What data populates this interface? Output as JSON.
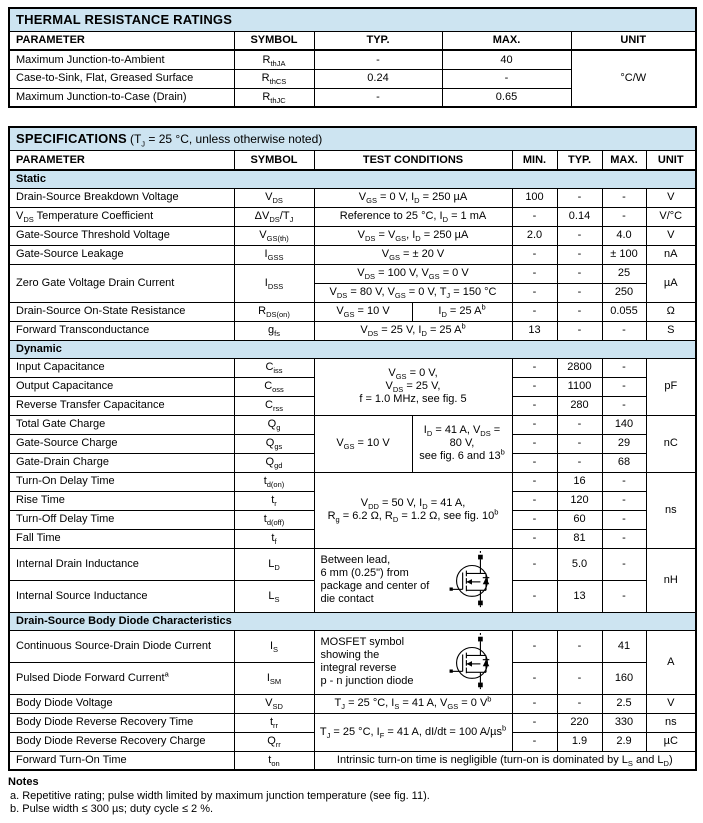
{
  "colors": {
    "band": "#cde4f1",
    "border": "#000000",
    "text": "#000000"
  },
  "thermal": {
    "title": "THERMAL RESISTANCE RATINGS",
    "headers": {
      "parameter": "PARAMETER",
      "symbol": "SYMBOL",
      "typ": "TYP.",
      "max": "MAX.",
      "unit": "UNIT"
    },
    "rows": [
      {
        "parameter": "Maximum Junction-to-Ambient",
        "symbol": "R~thJA~",
        "typ": "-",
        "max": "40"
      },
      {
        "parameter": "Case-to-Sink, Flat, Greased Surface",
        "symbol": "R~thCS~",
        "typ": "0.24",
        "max": "-"
      },
      {
        "parameter": "Maximum Junction-to-Case (Drain)",
        "symbol": "R~thJC~",
        "typ": "-",
        "max": "0.65"
      }
    ],
    "unit": "°C/W"
  },
  "spec": {
    "title": "SPECIFICATIONS",
    "subtitle": "(T~J~ = 25 °C, unless otherwise noted)",
    "headers": {
      "parameter": "PARAMETER",
      "symbol": "SYMBOL",
      "conditions": "TEST CONDITIONS",
      "min": "MIN.",
      "typ": "TYP.",
      "max": "MAX.",
      "unit": "UNIT"
    },
    "sections": {
      "static": "Static",
      "dynamic": "Dynamic",
      "diode": "Drain-Source Body Diode Characteristics"
    },
    "static_rows": [
      {
        "param": "Drain-Source Breakdown Voltage",
        "symbol": "V~DS~",
        "cond": "V~GS~ = 0 V, I~D~ = 250 µA",
        "min": "100",
        "typ": "-",
        "max": "-",
        "unit": "V"
      },
      {
        "param": "V~DS~ Temperature Coefficient",
        "symbol": "ΔV~DS~/T~J~",
        "cond": "Reference to 25 °C, I~D~ = 1 mA",
        "min": "-",
        "typ": "0.14",
        "max": "-",
        "unit": "V/°C"
      },
      {
        "param": "Gate-Source Threshold Voltage",
        "symbol": "V~GS(th)~",
        "cond": "V~DS~ = V~GS~, I~D~ = 250 µA",
        "min": "2.0",
        "typ": "-",
        "max": "4.0",
        "unit": "V"
      },
      {
        "param": "Gate-Source Leakage",
        "symbol": "I~GSS~",
        "cond": "V~GS~ = ± 20 V",
        "min": "-",
        "typ": "-",
        "max": "± 100",
        "unit": "nA"
      }
    ],
    "idss": {
      "param": "Zero Gate Voltage Drain Current",
      "symbol": "I~DSS~",
      "cond1": "V~DS~ = 100 V, V~GS~ = 0 V",
      "min1": "-",
      "typ1": "-",
      "max1": "25",
      "cond2": "V~DS~ = 80 V, V~GS~ = 0 V, T~J~ = 150 °C",
      "min2": "-",
      "typ2": "-",
      "max2": "250",
      "unit": "µA"
    },
    "rdson": {
      "param": "Drain-Source On-State Resistance",
      "symbol": "R~DS(on)~",
      "cond_left": "V~GS~ = 10 V",
      "cond_right": "I~D~ = 25 A^b^",
      "min": "-",
      "typ": "-",
      "max": "0.055",
      "unit": "Ω"
    },
    "gfs": {
      "param": "Forward Transconductance",
      "symbol": "g~fs~",
      "cond": "V~DS~ = 25 V, I~D~ = 25 A^b^",
      "min": "13",
      "typ": "-",
      "max": "-",
      "unit": "S"
    },
    "cap_cond": "V~GS~ = 0 V,\nV~DS~ = 25 V,\nf = 1.0 MHz, see fig. 5",
    "cap_unit": "pF",
    "cap_rows": [
      {
        "param": "Input Capacitance",
        "symbol": "C~iss~",
        "min": "-",
        "typ": "2800",
        "max": "-"
      },
      {
        "param": "Output Capacitance",
        "symbol": "C~oss~",
        "min": "-",
        "typ": "1100",
        "max": "-"
      },
      {
        "param": "Reverse Transfer Capacitance",
        "symbol": "C~rss~",
        "min": "-",
        "typ": "280",
        "max": "-"
      }
    ],
    "charge_cond_left": "V~GS~ = 10 V",
    "charge_cond_right": "I~D~ = 41 A, V~DS~ = 80 V,\nsee fig. 6 and 13^b^",
    "charge_unit": "nC",
    "charge_rows": [
      {
        "param": "Total Gate Charge",
        "symbol": "Q~g~",
        "min": "-",
        "typ": "-",
        "max": "140"
      },
      {
        "param": "Gate-Source Charge",
        "symbol": "Q~gs~",
        "min": "-",
        "typ": "-",
        "max": "29"
      },
      {
        "param": "Gate-Drain Charge",
        "symbol": "Q~gd~",
        "min": "-",
        "typ": "-",
        "max": "68"
      }
    ],
    "switch_cond": "V~DD~ = 50 V, I~D~ = 41 A,\nR~g~ = 6.2 Ω, R~D~ = 1.2 Ω, see fig. 10^b^",
    "switch_unit": "ns",
    "switch_rows": [
      {
        "param": "Turn-On Delay Time",
        "symbol": "t~d(on)~",
        "min": "-",
        "typ": "16",
        "max": "-"
      },
      {
        "param": "Rise Time",
        "symbol": "t~r~",
        "min": "-",
        "typ": "120",
        "max": "-"
      },
      {
        "param": "Turn-Off Delay Time",
        "symbol": "t~d(off)~",
        "min": "-",
        "typ": "60",
        "max": "-"
      },
      {
        "param": "Fall Time",
        "symbol": "t~f~",
        "min": "-",
        "typ": "81",
        "max": "-"
      }
    ],
    "induct_cond": "Between lead,\n6 mm (0.25\") from\npackage and center of\ndie contact",
    "induct_unit": "nH",
    "induct_rows": [
      {
        "param": "Internal Drain Inductance",
        "symbol": "L~D~",
        "min": "-",
        "typ": "5.0",
        "max": "-"
      },
      {
        "param": "Internal Source Inductance",
        "symbol": "L~S~",
        "min": "-",
        "typ": "13",
        "max": "-"
      }
    ],
    "diode_cond": "MOSFET symbol\nshowing the\nintegral reverse\np - n junction diode",
    "diode_unit": "A",
    "diode_rows": [
      {
        "param": "Continuous Source-Drain Diode Current",
        "symbol": "I~S~",
        "min": "-",
        "typ": "-",
        "max": "41"
      },
      {
        "param": "Pulsed Diode Forward Current^a^",
        "symbol": "I~SM~",
        "min": "-",
        "typ": "-",
        "max": "160"
      }
    ],
    "vsd": {
      "param": "Body Diode Voltage",
      "symbol": "V~SD~",
      "cond": "T~J~ = 25 °C, I~S~ = 41 A, V~GS~ = 0 V^b^",
      "min": "-",
      "typ": "-",
      "max": "2.5",
      "unit": "V"
    },
    "rr_cond": "T~J~ = 25 °C, I~F~ = 41 A, dI/dt = 100 A/µs^b^",
    "rr_rows": [
      {
        "param": "Body Diode Reverse Recovery Time",
        "symbol": "t~rr~",
        "min": "-",
        "typ": "220",
        "max": "330",
        "unit": "ns"
      },
      {
        "param": "Body Diode Reverse Recovery Charge",
        "symbol": "Q~rr~",
        "min": "-",
        "typ": "1.9",
        "max": "2.9",
        "unit": "µC"
      }
    ],
    "ton": {
      "param": "Forward Turn-On Time",
      "symbol": "t~on~",
      "cond": "Intrinsic turn-on time is negligible (turn-on is dominated by L~S~ and L~D~)"
    }
  },
  "notes": {
    "title": "Notes",
    "a": "a.  Repetitive rating; pulse width limited by maximum junction temperature (see fig. 11).",
    "b": "b.  Pulse width ≤ 300 µs; duty cycle ≤ 2 %."
  }
}
